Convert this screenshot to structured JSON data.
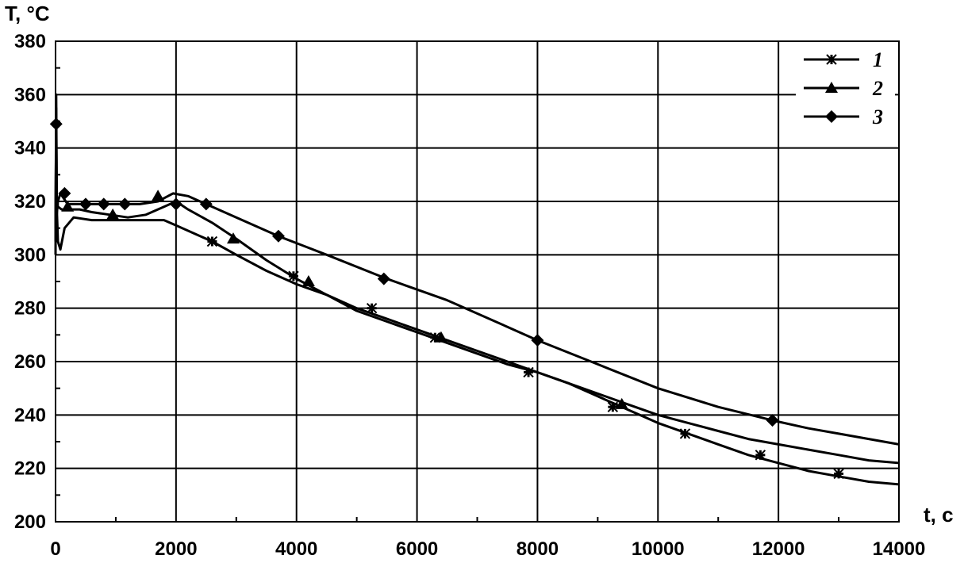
{
  "chart_data": {
    "type": "line",
    "xlabel": "t, c",
    "ylabel": "T, °C",
    "xlim": [
      0,
      14000
    ],
    "ylim": [
      200,
      380
    ],
    "xticks": [
      0,
      2000,
      4000,
      6000,
      8000,
      10000,
      12000,
      14000
    ],
    "yticks": [
      200,
      220,
      240,
      260,
      280,
      300,
      320,
      340,
      360,
      380
    ],
    "xtick_labels": [
      "0",
      "2000",
      "4000",
      "6000",
      "8000",
      "10000",
      "12000",
      "14000"
    ],
    "ytick_labels": [
      "200",
      "220",
      "240",
      "260",
      "280",
      "300",
      "320",
      "340",
      "360",
      "380"
    ],
    "grid": true,
    "legend_position": "top-right",
    "series": [
      {
        "name": "1",
        "marker": "star",
        "x": [
          0,
          10,
          20,
          40,
          80,
          150,
          300,
          600,
          900,
          1200,
          1500,
          1800,
          2000,
          2300,
          2600,
          3000,
          3500,
          4000,
          4500,
          5000,
          5500,
          6000,
          6500,
          7000,
          7500,
          8000,
          8500,
          9000,
          9500,
          10000,
          10500,
          11000,
          11500,
          12000,
          12500,
          13000,
          13500,
          14000
        ],
        "values": [
          300,
          355,
          318,
          305,
          302,
          310,
          314,
          313,
          313,
          313,
          313,
          313,
          311,
          308,
          305,
          300,
          294,
          289,
          285,
          280,
          276,
          272,
          268,
          264,
          260,
          256,
          252,
          247,
          242,
          237,
          233,
          229,
          225,
          222,
          219,
          217,
          215,
          214
        ],
        "marker_x": [
          2600,
          3950,
          5250,
          6300,
          7850,
          9250,
          10450,
          11700,
          13000
        ],
        "marker_y": [
          305,
          292,
          280,
          269,
          256,
          243,
          233,
          225,
          218
        ]
      },
      {
        "name": "2",
        "marker": "triangle",
        "x": [
          0,
          10,
          20,
          40,
          100,
          200,
          400,
          600,
          900,
          1200,
          1500,
          1800,
          2000,
          2200,
          2600,
          3000,
          3500,
          4000,
          4500,
          5000,
          5500,
          6000,
          6500,
          7000,
          7500,
          8000,
          8500,
          9000,
          9500,
          10000,
          10500,
          11000,
          11500,
          12000,
          12500,
          13000,
          13500,
          14000
        ],
        "values": [
          305,
          360,
          322,
          318,
          317,
          317,
          317,
          316,
          315,
          314,
          315,
          318,
          320,
          317,
          312,
          306,
          298,
          291,
          285,
          279,
          275,
          271,
          267,
          263,
          259,
          256,
          252,
          248,
          244,
          240,
          237,
          234,
          231,
          229,
          227,
          225,
          223,
          222
        ],
        "marker_x": [
          200,
          950,
          1700,
          2950,
          4200,
          6400,
          9400
        ],
        "marker_y": [
          318,
          315,
          322,
          306,
          290,
          269,
          244
        ]
      },
      {
        "name": "3",
        "marker": "diamond",
        "x": [
          0,
          10,
          20,
          40,
          80,
          200,
          500,
          800,
          1100,
          1400,
          1700,
          1950,
          2200,
          2500,
          3000,
          3700,
          4500,
          5500,
          6500,
          7500,
          8000,
          9000,
          10000,
          11000,
          11900,
          12500,
          13000,
          13500,
          14000
        ],
        "values": [
          310,
          349,
          315,
          320,
          323,
          319,
          319,
          319,
          319,
          319,
          320,
          323,
          322,
          319,
          314,
          307,
          300,
          291,
          283,
          273,
          268,
          259,
          250,
          243,
          238,
          235,
          233,
          231,
          229
        ],
        "marker_x": [
          10,
          150,
          500,
          800,
          1150,
          2000,
          2500,
          3700,
          5450,
          8000,
          11900
        ],
        "marker_y": [
          349,
          323,
          319,
          319,
          319,
          319,
          319,
          307,
          291,
          268,
          238
        ]
      }
    ]
  }
}
